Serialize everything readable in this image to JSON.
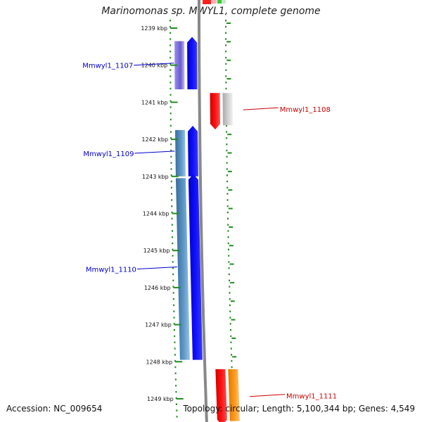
{
  "title": "Marinomonas sp. MWYL1, complete genome",
  "footer": {
    "accession": "Accession: NC_009654",
    "summary": "Topology: circular; Length: 5,100,344 bp; Genes: 4,549"
  },
  "map": {
    "range_kbp": [
      1239,
      1249
    ],
    "ticks": [
      {
        "kbp": 1239,
        "label": "1239 kbp"
      },
      {
        "kbp": 1240,
        "label": "1240 kbp"
      },
      {
        "kbp": 1241,
        "label": "1241 kbp"
      },
      {
        "kbp": 1242,
        "label": "1242 kbp"
      },
      {
        "kbp": 1243,
        "label": "1243 kbp"
      },
      {
        "kbp": 1244,
        "label": "1244 kbp"
      },
      {
        "kbp": 1245,
        "label": "1245 kbp"
      },
      {
        "kbp": 1246,
        "label": "1246 kbp"
      },
      {
        "kbp": 1247,
        "label": "1247 kbp"
      },
      {
        "kbp": 1248,
        "label": "1248 kbp"
      },
      {
        "kbp": 1249,
        "label": "1249 kbp"
      }
    ],
    "genes": [
      {
        "name": "Mmwyl1_1107",
        "strand": "forward",
        "start_kbp": 1239.35,
        "end_kbp": 1240.65,
        "label_color": "#0000cc",
        "cds_color": "#0000ff",
        "feature_color": "#7b68ee"
      },
      {
        "name": "Mmwyl1_1108",
        "strand": "reverse",
        "start_kbp": 1240.75,
        "end_kbp": 1241.62,
        "label_color": "#cc0000",
        "cds_color": "#ff0000",
        "feature_color": "#c8c8c8"
      },
      {
        "name": "Mmwyl1_1109",
        "strand": "forward",
        "start_kbp": 1241.75,
        "end_kbp": 1243.0,
        "label_color": "#0000cc",
        "cds_color": "#0000ff",
        "feature_color": "#4682b4"
      },
      {
        "name": "Mmwyl1_1110",
        "strand": "forward",
        "start_kbp": 1243.05,
        "end_kbp": 1247.95,
        "label_color": "#0000cc",
        "cds_color": "#0000ff",
        "feature_color": "#4682b4"
      },
      {
        "name": "Mmwyl1_1111",
        "strand": "reverse",
        "start_kbp": 1248.2,
        "end_kbp": 1249.6,
        "label_color": "#cc0000",
        "cds_color": "#ff0000",
        "feature_color": "#ff8c00"
      }
    ],
    "colors": {
      "backbone": "#888888",
      "dots": "#228b22"
    }
  }
}
